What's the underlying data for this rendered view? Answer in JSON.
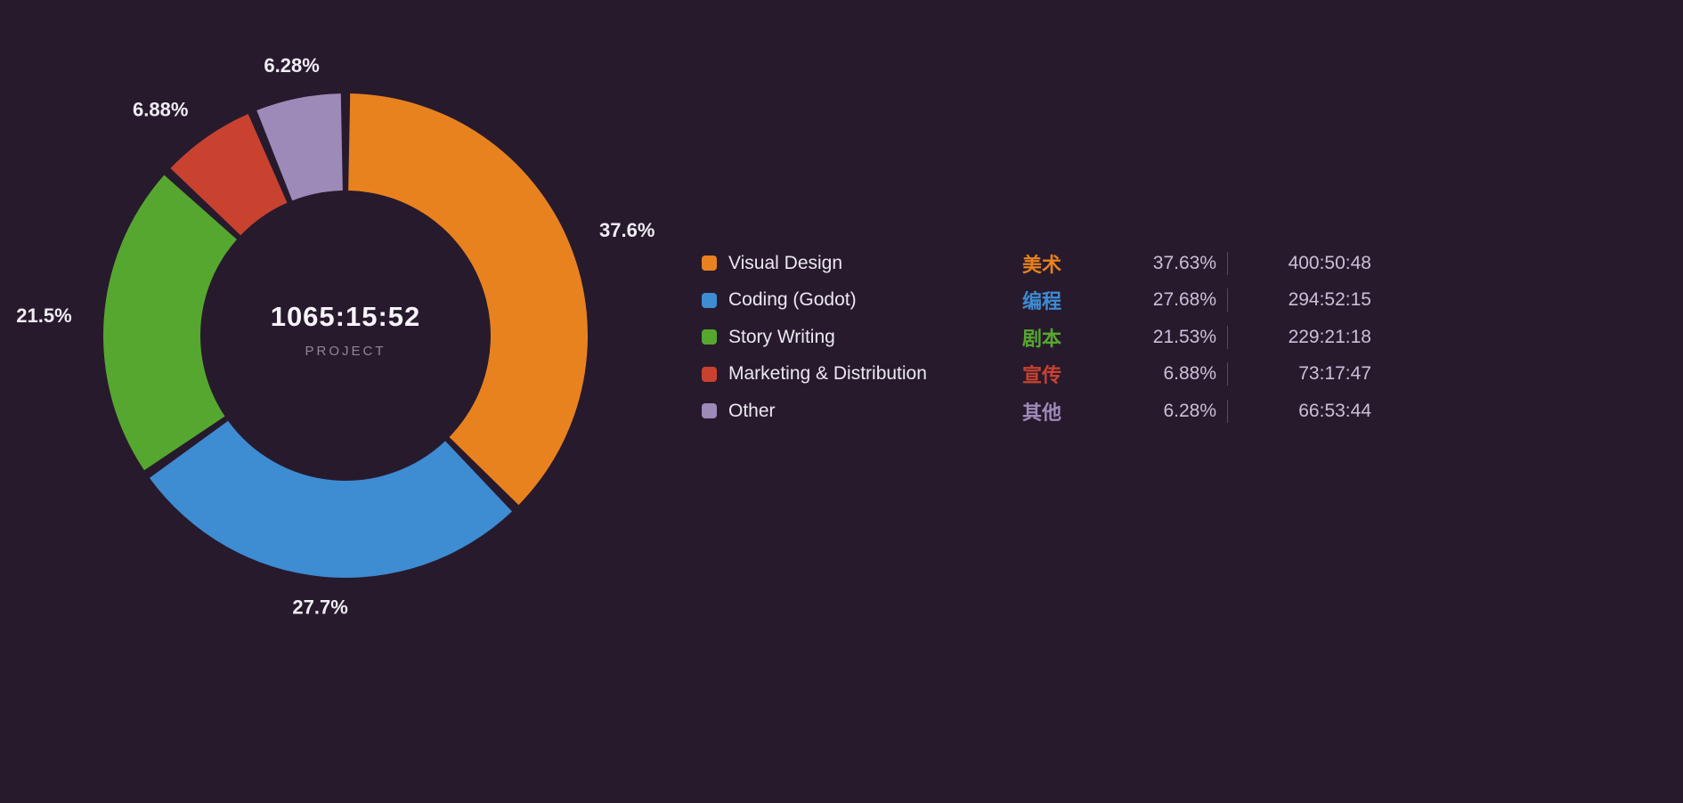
{
  "chart_data": {
    "type": "pie",
    "donut": true,
    "title": "1065:15:52",
    "subtitle": "PROJECT",
    "legend_position": "right",
    "background_color": "#271a2d",
    "segments": [
      {
        "name": "Visual Design",
        "name_zh": "美术",
        "value_percent": 37.63,
        "percent_label": "37.63%",
        "outer_label": "37.6%",
        "time": "400:50:48",
        "color": "#e8821e"
      },
      {
        "name": "Coding (Godot)",
        "name_zh": "编程",
        "value_percent": 27.68,
        "percent_label": "27.68%",
        "outer_label": "27.7%",
        "time": "294:52:15",
        "color": "#3e8cd2"
      },
      {
        "name": "Story Writing",
        "name_zh": "剧本",
        "value_percent": 21.53,
        "percent_label": "21.53%",
        "outer_label": "21.5%",
        "time": "229:21:18",
        "color": "#56a72f"
      },
      {
        "name": "Marketing & Distribution",
        "name_zh": "宣传",
        "value_percent": 6.88,
        "percent_label": "6.88%",
        "outer_label": "6.88%",
        "time": "73:17:47",
        "color": "#c8422f"
      },
      {
        "name": "Other",
        "name_zh": "其他",
        "value_percent": 6.28,
        "percent_label": "6.28%",
        "outer_label": "6.28%",
        "time": "66:53:44",
        "color": "#9d8ab8"
      }
    ]
  }
}
